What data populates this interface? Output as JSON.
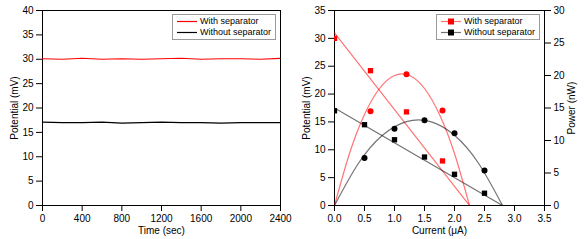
{
  "chart_data": [
    {
      "type": "line",
      "xlabel": "Time (sec)",
      "ylabel": "Potential (mV)",
      "xlim": [
        0,
        2400
      ],
      "xticks": [
        0,
        400,
        800,
        1200,
        1600,
        2000,
        2400
      ],
      "ylim": [
        0,
        40
      ],
      "yticks": [
        0,
        5,
        10,
        15,
        20,
        25,
        30,
        35,
        40
      ],
      "legend": "top-right",
      "x": [
        0,
        200,
        400,
        600,
        800,
        1000,
        1200,
        1400,
        1600,
        1800,
        2000,
        2200,
        2400
      ],
      "series": [
        {
          "name": "With separator",
          "color": "#ff0000",
          "values": [
            30.1,
            30.0,
            30.2,
            30.0,
            30.1,
            30.0,
            30.1,
            30.2,
            30.0,
            30.1,
            30.1,
            30.0,
            30.2
          ]
        },
        {
          "name": "Without separator",
          "color": "#000000",
          "values": [
            17.1,
            17.0,
            17.0,
            17.1,
            16.9,
            17.0,
            17.1,
            17.0,
            17.0,
            16.9,
            17.0,
            17.0,
            17.0
          ]
        }
      ]
    },
    {
      "type": "scatter",
      "xlabel": "Current (μA)",
      "ylabel": "Potential (mV)",
      "y2label": "Power (nW)",
      "xlim": [
        0,
        3.5
      ],
      "xticks": [
        {
          "value": 0,
          "label": "0.0"
        },
        0.5,
        {
          "value": 1,
          "label": "1.0"
        },
        1.5,
        {
          "value": 2,
          "label": "2.0"
        },
        2.5,
        {
          "value": 3,
          "label": "3.0"
        },
        3.5
      ],
      "ylim": [
        0,
        35
      ],
      "yticks": [
        0,
        5,
        10,
        15,
        20,
        25,
        30,
        35
      ],
      "y2lim": [
        0,
        30
      ],
      "y2ticks": [
        0,
        5,
        10,
        15,
        20,
        25,
        30
      ],
      "legend": "top-right",
      "series": [
        {
          "name": "With separator",
          "color": "#ff0000",
          "marker": "square",
          "x": [
            0,
            0.6,
            1.2,
            1.8
          ],
          "values": [
            30,
            24.2,
            16.8,
            8
          ],
          "fit": {
            "x": [
              0,
              2.25
            ],
            "values": [
              31,
              0
            ]
          }
        },
        {
          "name": "Without separator",
          "color": "#000000",
          "marker": "square",
          "x": [
            0,
            0.5,
            1.0,
            1.5,
            2.0,
            2.5
          ],
          "values": [
            17,
            14.5,
            11.8,
            8.7,
            5.6,
            2.2
          ],
          "fit": {
            "x": [
              0,
              2.8
            ],
            "values": [
              17.5,
              0
            ]
          }
        },
        {
          "name": "With separator",
          "color": "#ff0000",
          "marker": "circle",
          "axis": "y2",
          "x": [
            0.6,
            1.2,
            1.8
          ],
          "values": [
            14.5,
            20.2,
            14.6
          ],
          "fit": {
            "x": [
              0,
              0.25,
              0.5,
              0.75,
              1.0,
              1.25,
              1.5,
              1.75,
              2.0,
              2.25
            ],
            "values": [
              0,
              8.0,
              14.0,
              18.0,
              20.0,
              20.0,
              18.0,
              14.0,
              8.0,
              0
            ]
          }
        },
        {
          "name": "Without separator",
          "color": "#000000",
          "marker": "circle",
          "axis": "y2",
          "x": [
            0.5,
            1.0,
            1.5,
            2.0,
            2.5
          ],
          "values": [
            7.3,
            11.8,
            13.1,
            11.1,
            5.4
          ],
          "fit": {
            "x": [
              0,
              0.4,
              0.8,
              1.2,
              1.6,
              2.0,
              2.4,
              2.8
            ],
            "values": [
              0,
              6.5,
              10.8,
              12.9,
              12.9,
              10.8,
              6.5,
              0
            ]
          }
        }
      ]
    }
  ]
}
